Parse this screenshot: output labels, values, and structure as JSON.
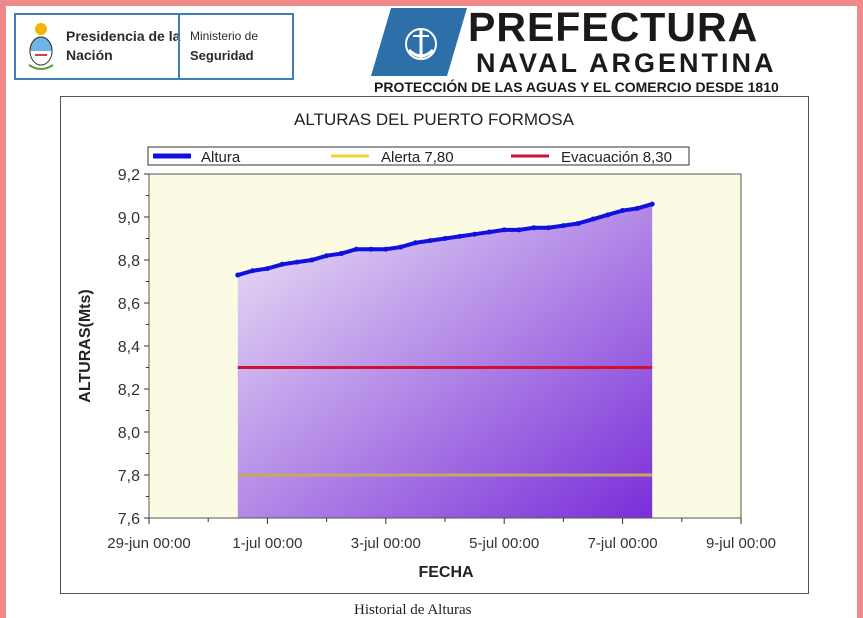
{
  "header": {
    "gov_title": "Presidencia de la Nación",
    "ministry_label": "Ministerio de",
    "ministry_name": "Seguridad",
    "pna_name_line1": "PREFECTURA",
    "pna_name_line2": "NAVAL ARGENTINA",
    "pna_motto": "PROTECCIÓN DE LAS AGUAS Y EL COMERCIO DESDE 1810",
    "logo_icon": "anchor-shield-icon",
    "seal_icon": "national-seal-icon"
  },
  "caption": "Historial de Alturas",
  "colors": {
    "altura": "#1010e0",
    "alerta": "#e8d830",
    "evacuacion": "#d01030",
    "background": "#fbfbe4",
    "area_light": "#ece4f6",
    "area_dark": "#7a2ed8"
  },
  "chart_data": {
    "type": "area",
    "title": "ALTURAS DEL PUERTO FORMOSA",
    "xlabel": "FECHA",
    "ylabel": "ALTURAS(Mts)",
    "legend_position": "top",
    "grid": false,
    "xlim": [
      "2024-06-29 00:00",
      "2024-07-09 00:00"
    ],
    "ylim": [
      7.6,
      9.2
    ],
    "x_tick_labels": [
      "29-jun 00:00",
      "1-jul 00:00",
      "3-jul 00:00",
      "5-jul 00:00",
      "7-jul 00:00",
      "9-jul 00:00"
    ],
    "y_tick_labels": [
      "7,6",
      "7,8",
      "8,0",
      "8,2",
      "8,4",
      "8,6",
      "8,8",
      "9,0",
      "9,2"
    ],
    "series": [
      {
        "name": "Altura",
        "x": [
          "2024-06-30 12:00",
          "2024-06-30 18:00",
          "2024-07-01 00:00",
          "2024-07-01 06:00",
          "2024-07-01 12:00",
          "2024-07-01 18:00",
          "2024-07-02 00:00",
          "2024-07-02 06:00",
          "2024-07-02 12:00",
          "2024-07-02 18:00",
          "2024-07-03 00:00",
          "2024-07-03 06:00",
          "2024-07-03 12:00",
          "2024-07-03 18:00",
          "2024-07-04 00:00",
          "2024-07-04 06:00",
          "2024-07-04 12:00",
          "2024-07-04 18:00",
          "2024-07-05 00:00",
          "2024-07-05 06:00",
          "2024-07-05 12:00",
          "2024-07-05 18:00",
          "2024-07-06 00:00",
          "2024-07-06 06:00",
          "2024-07-06 12:00",
          "2024-07-06 18:00",
          "2024-07-07 00:00",
          "2024-07-07 06:00",
          "2024-07-07 12:00"
        ],
        "values": [
          8.73,
          8.75,
          8.76,
          8.78,
          8.79,
          8.8,
          8.82,
          8.83,
          8.85,
          8.85,
          8.85,
          8.86,
          8.88,
          8.89,
          8.9,
          8.91,
          8.92,
          8.93,
          8.94,
          8.94,
          8.95,
          8.95,
          8.96,
          8.97,
          8.99,
          9.01,
          9.03,
          9.04,
          9.06
        ]
      },
      {
        "name": "Alerta 7,80",
        "x": [
          "2024-06-30 12:00",
          "2024-07-07 12:00"
        ],
        "values": [
          7.8,
          7.8
        ]
      },
      {
        "name": "Evacuación 8,30",
        "x": [
          "2024-06-30 12:00",
          "2024-07-07 12:00"
        ],
        "values": [
          8.3,
          8.3
        ]
      }
    ]
  }
}
